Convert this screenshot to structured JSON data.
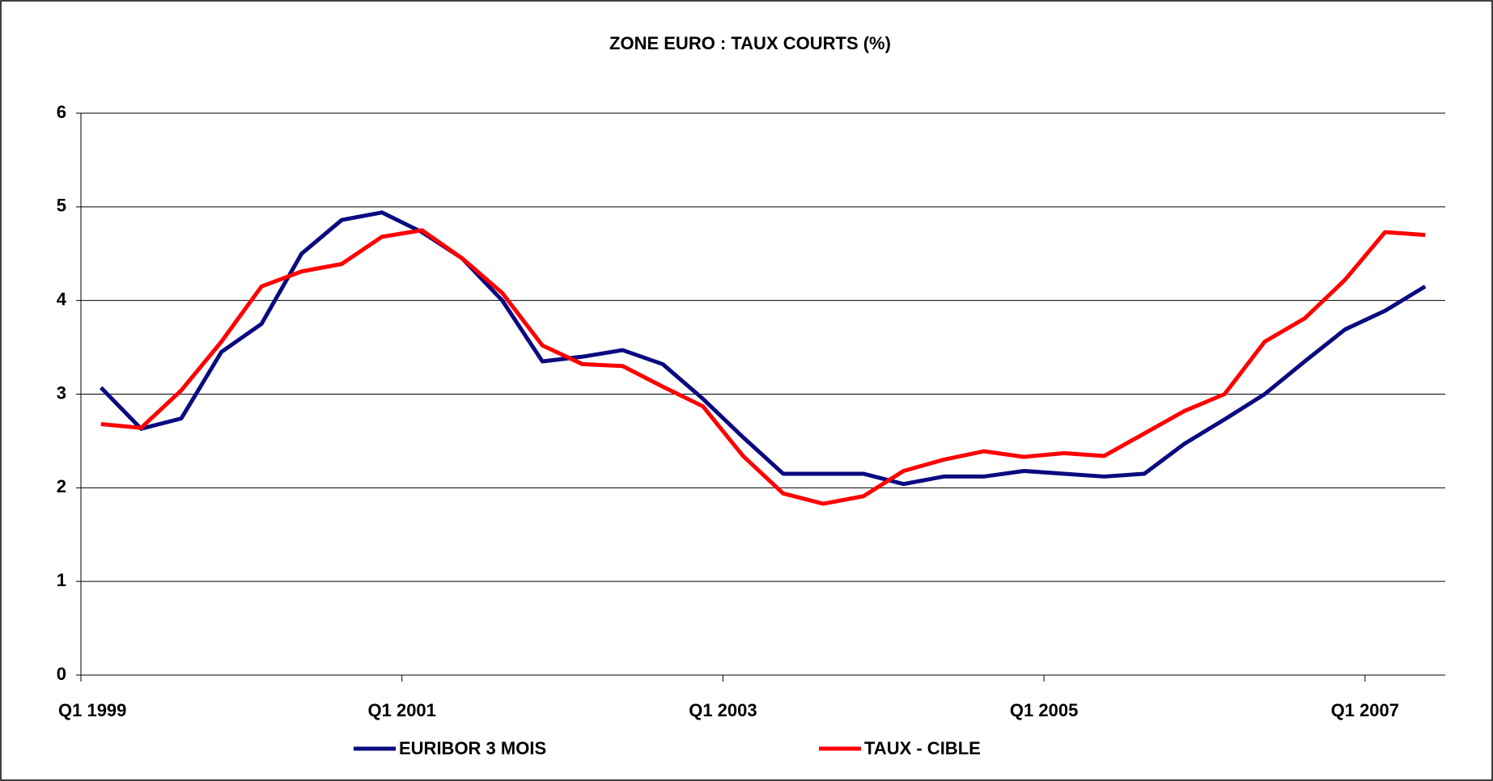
{
  "chart_data": {
    "type": "line",
    "title": "ZONE EURO : TAUX COURTS (%)",
    "categories": [
      "Q1 1999",
      null,
      null,
      null,
      null,
      null,
      null,
      null,
      "Q1 2001",
      null,
      null,
      null,
      null,
      null,
      null,
      null,
      "Q1 2003",
      null,
      null,
      null,
      null,
      null,
      null,
      null,
      "Q1 2005",
      null,
      null,
      null,
      null,
      null,
      null,
      null,
      "Q1 2007",
      null
    ],
    "series": [
      {
        "name": "EURIBOR 3 MOIS",
        "color": "#0a0a80",
        "values": [
          3.07,
          2.63,
          2.74,
          3.45,
          3.75,
          4.5,
          4.86,
          4.94,
          4.73,
          4.45,
          4.0,
          3.35,
          3.4,
          3.47,
          3.32,
          2.95,
          2.54,
          2.15,
          2.15,
          2.15,
          2.04,
          2.12,
          2.12,
          2.18,
          2.15,
          2.12,
          2.15,
          2.47,
          2.73,
          3.0,
          3.35,
          3.69,
          3.89,
          4.15
        ]
      },
      {
        "name": "TAUX - CIBLE",
        "color": "#ff0000",
        "values": [
          2.68,
          2.64,
          3.04,
          3.56,
          4.15,
          4.31,
          4.39,
          4.68,
          4.75,
          4.45,
          4.08,
          3.52,
          3.32,
          3.3,
          3.08,
          2.87,
          2.34,
          1.94,
          1.83,
          1.91,
          2.18,
          2.3,
          2.39,
          2.33,
          2.37,
          2.34,
          2.58,
          2.82,
          3.0,
          3.56,
          3.81,
          4.22,
          4.73,
          4.7
        ]
      }
    ],
    "ylim": [
      0,
      6
    ],
    "yticks": [
      0,
      1,
      2,
      3,
      4,
      5,
      6
    ],
    "grid": true
  }
}
